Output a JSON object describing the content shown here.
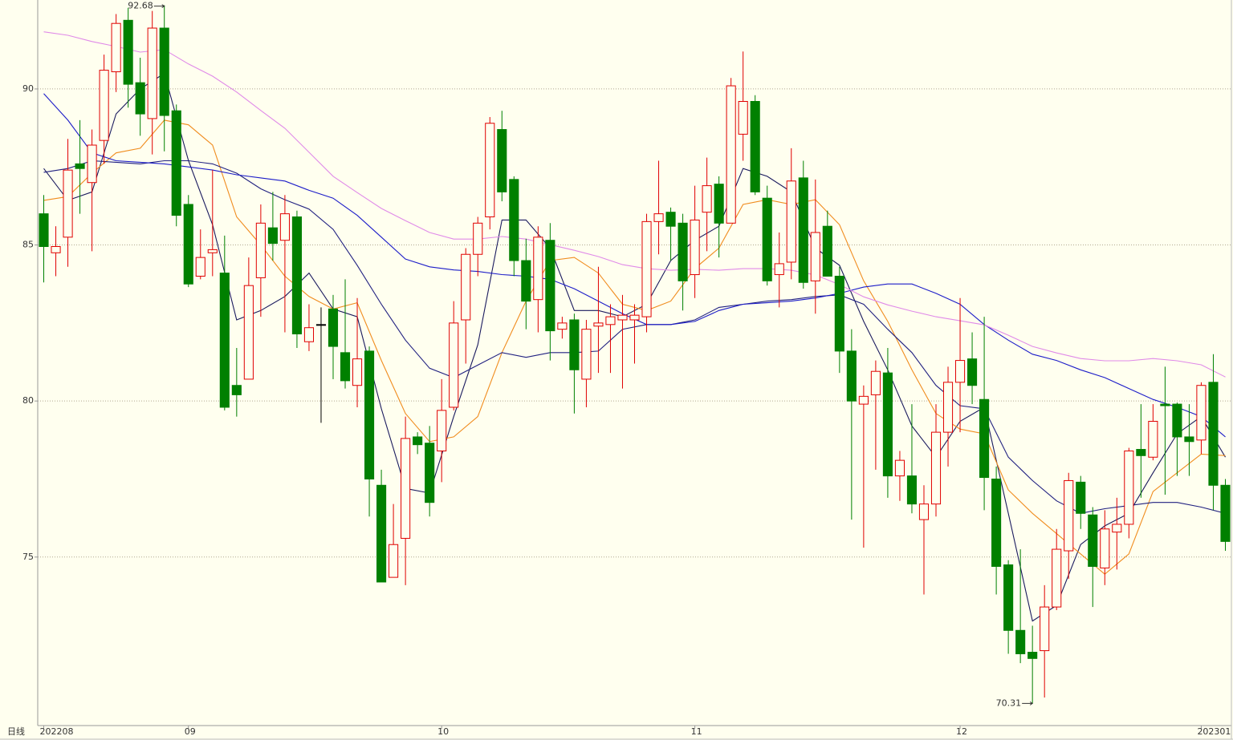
{
  "chart_data": {
    "type": "candlestick",
    "period_label": "日线",
    "up_color": "#e00000",
    "down_color": "#008000",
    "flat_color": "#000000",
    "grid": true,
    "ylim": [
      69.6,
      92.85
    ],
    "yticks": [
      75,
      80,
      85,
      90
    ],
    "xlim": [
      -0.5,
      98.5
    ],
    "xticks": [
      {
        "value": 0,
        "label": "202208"
      },
      {
        "value": 12,
        "label": "09"
      },
      {
        "value": 33,
        "label": "10"
      },
      {
        "value": 54,
        "label": "11"
      },
      {
        "value": 76,
        "label": "12"
      },
      {
        "value": 96,
        "label": "202301"
      }
    ],
    "candles": [
      [
        86.0,
        86.6,
        83.8,
        84.95
      ],
      [
        84.75,
        85.6,
        84.0,
        84.95
      ],
      [
        85.25,
        88.4,
        84.3,
        87.4
      ],
      [
        87.6,
        89.0,
        86.0,
        87.45
      ],
      [
        87.0,
        88.7,
        84.8,
        88.2
      ],
      [
        88.35,
        91.1,
        87.6,
        90.6
      ],
      [
        90.55,
        92.4,
        89.9,
        92.1
      ],
      [
        92.2,
        92.6,
        89.4,
        90.15
      ],
      [
        90.2,
        91.0,
        88.5,
        89.2
      ],
      [
        89.05,
        92.5,
        87.9,
        91.95
      ],
      [
        91.95,
        92.68,
        88.0,
        89.15
      ],
      [
        89.3,
        89.5,
        85.6,
        85.95
      ],
      [
        86.3,
        86.6,
        83.65,
        83.75
      ],
      [
        84.0,
        85.5,
        83.9,
        84.6
      ],
      [
        84.75,
        87.4,
        84.0,
        84.85
      ],
      [
        84.1,
        85.3,
        79.7,
        79.8
      ],
      [
        80.5,
        81.7,
        79.5,
        80.2
      ],
      [
        80.7,
        84.6,
        80.7,
        83.7
      ],
      [
        83.95,
        86.3,
        82.7,
        85.7
      ],
      [
        85.55,
        86.7,
        84.5,
        85.05
      ],
      [
        85.15,
        86.6,
        82.2,
        86.0
      ],
      [
        85.9,
        86.1,
        81.7,
        82.15
      ],
      [
        81.9,
        83.1,
        81.6,
        82.35
      ],
      [
        82.45,
        83.0,
        79.3,
        82.45
      ],
      [
        82.95,
        83.4,
        80.7,
        81.75
      ],
      [
        81.55,
        83.9,
        80.4,
        80.65
      ],
      [
        80.5,
        83.3,
        79.8,
        81.35
      ],
      [
        81.6,
        81.75,
        76.3,
        77.5
      ],
      [
        77.3,
        77.8,
        74.2,
        74.2
      ],
      [
        74.35,
        76.7,
        74.35,
        75.4
      ],
      [
        75.6,
        79.5,
        74.1,
        78.8
      ],
      [
        78.85,
        79.0,
        78.3,
        78.6
      ],
      [
        78.65,
        79.2,
        76.3,
        76.75
      ],
      [
        78.4,
        80.7,
        77.4,
        79.7
      ],
      [
        79.8,
        83.2,
        79.7,
        82.5
      ],
      [
        82.6,
        84.9,
        81.2,
        84.7
      ],
      [
        84.7,
        85.9,
        84.0,
        85.7
      ],
      [
        85.9,
        89.1,
        85.5,
        88.9
      ],
      [
        88.7,
        89.3,
        86.4,
        86.7
      ],
      [
        87.1,
        87.2,
        84.0,
        84.5
      ],
      [
        84.5,
        85.2,
        82.3,
        83.2
      ],
      [
        83.25,
        85.6,
        82.2,
        85.25
      ],
      [
        85.15,
        85.7,
        81.3,
        82.25
      ],
      [
        82.3,
        82.7,
        82.0,
        82.5
      ],
      [
        82.6,
        82.8,
        79.6,
        81.0
      ],
      [
        80.7,
        82.6,
        79.8,
        82.3
      ],
      [
        82.4,
        84.3,
        80.9,
        82.5
      ],
      [
        82.45,
        83.1,
        80.9,
        82.7
      ],
      [
        82.6,
        83.4,
        80.4,
        82.75
      ],
      [
        82.6,
        83.1,
        81.2,
        82.75
      ],
      [
        82.7,
        86.0,
        82.2,
        85.75
      ],
      [
        85.75,
        87.7,
        84.7,
        86.0
      ],
      [
        86.05,
        86.2,
        84.5,
        85.6
      ],
      [
        85.7,
        86.0,
        82.9,
        83.85
      ],
      [
        84.05,
        86.9,
        83.3,
        85.8
      ],
      [
        86.05,
        87.8,
        84.8,
        86.9
      ],
      [
        86.95,
        87.2,
        84.6,
        85.7
      ],
      [
        85.7,
        90.35,
        85.7,
        90.1
      ],
      [
        88.55,
        91.2,
        87.7,
        89.6
      ],
      [
        89.6,
        89.8,
        86.6,
        86.7
      ],
      [
        86.5,
        86.9,
        83.7,
        83.85
      ],
      [
        84.05,
        85.4,
        83.0,
        84.4
      ],
      [
        84.45,
        88.1,
        83.9,
        87.05
      ],
      [
        87.15,
        87.7,
        83.6,
        83.8
      ],
      [
        83.85,
        87.1,
        82.8,
        85.4
      ],
      [
        85.6,
        86.1,
        84.0,
        84.0
      ],
      [
        84.0,
        84.3,
        80.9,
        81.6
      ],
      [
        81.6,
        82.3,
        76.2,
        80.0
      ],
      [
        79.9,
        80.5,
        75.3,
        80.15
      ],
      [
        80.2,
        81.3,
        77.8,
        80.95
      ],
      [
        80.9,
        81.7,
        76.9,
        77.6
      ],
      [
        77.6,
        78.4,
        76.8,
        78.1
      ],
      [
        77.6,
        79.9,
        76.4,
        76.7
      ],
      [
        76.2,
        77.3,
        73.8,
        76.7
      ],
      [
        76.7,
        79.9,
        76.3,
        79.0
      ],
      [
        79.0,
        81.1,
        77.9,
        80.6
      ],
      [
        80.6,
        83.3,
        79.0,
        81.3
      ],
      [
        81.35,
        82.2,
        79.9,
        80.5
      ],
      [
        80.05,
        82.7,
        76.5,
        77.55
      ],
      [
        77.5,
        77.9,
        73.8,
        74.7
      ],
      [
        74.75,
        74.9,
        71.9,
        72.65
      ],
      [
        72.65,
        75.25,
        71.6,
        71.9
      ],
      [
        71.95,
        72.8,
        70.31,
        71.75
      ],
      [
        72.0,
        74.1,
        70.5,
        73.4
      ],
      [
        73.4,
        75.9,
        73.3,
        75.25
      ],
      [
        75.2,
        77.7,
        74.3,
        77.45
      ],
      [
        77.4,
        77.6,
        75.9,
        76.4
      ],
      [
        76.35,
        76.6,
        73.4,
        74.7
      ],
      [
        74.65,
        76.5,
        74.1,
        75.9
      ],
      [
        75.8,
        76.9,
        74.6,
        76.05
      ],
      [
        76.05,
        78.5,
        75.6,
        78.4
      ],
      [
        78.45,
        79.9,
        76.9,
        78.25
      ],
      [
        78.2,
        79.9,
        78.1,
        79.35
      ],
      [
        79.9,
        81.1,
        77.0,
        79.85
      ],
      [
        79.9,
        79.95,
        77.6,
        78.85
      ],
      [
        78.85,
        79.9,
        77.6,
        78.7
      ],
      [
        78.75,
        80.6,
        78.3,
        80.5
      ],
      [
        80.6,
        81.5,
        76.5,
        77.3
      ],
      [
        77.3,
        77.5,
        75.2,
        75.5
      ]
    ],
    "x": [
      0,
      2,
      4,
      6,
      8,
      10,
      12,
      14,
      16,
      18,
      20,
      22,
      24,
      26,
      28,
      30,
      32,
      34,
      36,
      38,
      40,
      42,
      44,
      46,
      48,
      50,
      52,
      54,
      56,
      58,
      60,
      62,
      64,
      66,
      68,
      70,
      72,
      74,
      76,
      78,
      80,
      82,
      84,
      86,
      88,
      90,
      92,
      94,
      96,
      98
    ],
    "series": [
      {
        "color": "#1a1a5e",
        "values": [
          87.45,
          86.43,
          86.7,
          89.2,
          90.0,
          90.5,
          87.7,
          85.65,
          82.6,
          82.9,
          83.35,
          84.1,
          82.95,
          82.7,
          79.75,
          77.2,
          77.05,
          79.5,
          81.8,
          85.8,
          85.8,
          84.9,
          82.9,
          82.9,
          82.7,
          83.1,
          84.5,
          85.15,
          85.6,
          87.45,
          87.2,
          86.7,
          84.9,
          84.35,
          82.55,
          81.0,
          79.2,
          78.2,
          79.35,
          79.8,
          76.4,
          72.95,
          73.45,
          75.4,
          76.0,
          76.4,
          77.7,
          78.95,
          79.5,
          78.2
        ]
      },
      {
        "color": "#f08c1e",
        "values": [
          86.43,
          86.55,
          87.3,
          87.95,
          88.1,
          89.0,
          88.85,
          88.2,
          85.9,
          85.0,
          84.0,
          83.35,
          82.95,
          83.15,
          81.3,
          79.6,
          78.7,
          78.85,
          79.5,
          81.55,
          83.2,
          84.5,
          84.6,
          84.1,
          83.1,
          82.9,
          83.2,
          84.25,
          84.9,
          86.3,
          86.45,
          86.3,
          86.45,
          85.65,
          83.85,
          82.55,
          81.0,
          79.6,
          79.1,
          78.95,
          77.15,
          76.4,
          75.75,
          75.1,
          74.45,
          75.1,
          77.1,
          77.7,
          78.3,
          78.25
        ]
      },
      {
        "color": "#202080",
        "values": [
          87.33,
          87.45,
          87.7,
          87.65,
          87.6,
          87.7,
          87.7,
          87.6,
          87.3,
          86.8,
          86.45,
          86.15,
          85.5,
          84.35,
          83.1,
          81.95,
          81.05,
          80.75,
          81.15,
          81.55,
          81.4,
          81.55,
          81.55,
          81.6,
          82.3,
          82.45,
          82.45,
          82.6,
          83.0,
          83.1,
          83.2,
          83.25,
          83.35,
          83.4,
          83.1,
          82.3,
          81.55,
          80.5,
          79.85,
          79.75,
          78.2,
          77.45,
          76.8,
          76.4,
          76.55,
          76.65,
          76.75,
          76.75,
          76.6,
          76.4
        ]
      },
      {
        "color": "#1c1cc8",
        "values": [
          89.85,
          89.0,
          87.95,
          87.7,
          87.65,
          87.6,
          87.5,
          87.4,
          87.25,
          87.15,
          87.05,
          86.75,
          86.5,
          85.95,
          85.25,
          84.55,
          84.3,
          84.2,
          84.15,
          84.05,
          84.0,
          83.9,
          83.6,
          83.2,
          82.8,
          82.45,
          82.45,
          82.55,
          82.9,
          83.1,
          83.15,
          83.2,
          83.3,
          83.45,
          83.65,
          83.75,
          83.75,
          83.45,
          83.1,
          82.45,
          81.95,
          81.5,
          81.3,
          81.0,
          80.75,
          80.4,
          80.05,
          79.8,
          79.5,
          78.85
        ]
      },
      {
        "color": "#e08ae8",
        "values": [
          91.83,
          91.72,
          91.52,
          91.36,
          91.18,
          91.26,
          90.8,
          90.41,
          89.9,
          89.31,
          88.74,
          87.97,
          87.2,
          86.68,
          86.17,
          85.78,
          85.4,
          85.19,
          85.19,
          85.27,
          85.19,
          85.01,
          84.83,
          84.63,
          84.37,
          84.24,
          84.19,
          84.22,
          84.19,
          84.24,
          84.24,
          84.19,
          84.04,
          83.73,
          83.34,
          83.08,
          82.88,
          82.7,
          82.57,
          82.44,
          82.11,
          81.75,
          81.54,
          81.36,
          81.29,
          81.29,
          81.36,
          81.29,
          81.16,
          80.77
        ]
      }
    ],
    "high_marker": 10,
    "low_marker": 82
  }
}
